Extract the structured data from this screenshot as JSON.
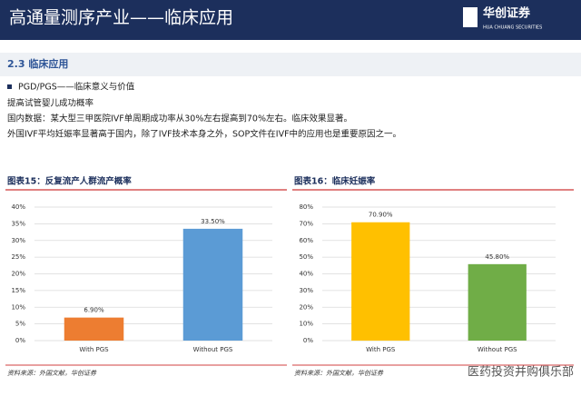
{
  "header": {
    "title": "高通量测序产业——临床应用",
    "logo": "华创证券",
    "logo_sub": "HUA CHUANG SECURITIES"
  },
  "section": "2.3 临床应用",
  "bullet": "PGD/PGS——临床意义与价值",
  "lines": [
    "提高试管婴儿成功概率",
    "国内数据：某大型三甲医院IVF单周期成功率从30%左右提高到70%左右。临床效果显著。",
    "外国IVF平均妊娠率显著高于国内，除了IVF技术本身之外，SOP文件在IVF中的应用也是重要原因之一。"
  ],
  "watermark": "医药投资并购俱乐部",
  "chart_data": [
    {
      "type": "bar",
      "title": "图表15：反复流产人群流产概率",
      "source": "资料来源：外国文献，华创证券",
      "categories": [
        "With PGS",
        "Without PGS"
      ],
      "values": [
        6.9,
        33.5
      ],
      "value_labels": [
        "6.90%",
        "33.50%"
      ],
      "colors": [
        "#ed7d31",
        "#5b9bd5"
      ],
      "ylim": [
        0,
        40
      ],
      "grid": true,
      "yticks": [
        {
          "value": 0,
          "label": "0%"
        },
        {
          "value": 5,
          "label": "5%"
        },
        {
          "value": 10,
          "label": "10%"
        },
        {
          "value": 15,
          "label": "15%"
        },
        {
          "value": 20,
          "label": "20%"
        },
        {
          "value": 25,
          "label": "25%"
        },
        {
          "value": 30,
          "label": "30%"
        },
        {
          "value": 35,
          "label": "35%"
        },
        {
          "value": 40,
          "label": "40%"
        }
      ]
    },
    {
      "type": "bar",
      "title": "图表16：临床妊娠率",
      "source": "资料来源：外国文献，华创证券",
      "categories": [
        "With PGS",
        "Without PGS"
      ],
      "values": [
        70.9,
        45.8
      ],
      "value_labels": [
        "70.90%",
        "45.80%"
      ],
      "colors": [
        "#ffc000",
        "#70ad47"
      ],
      "ylim": [
        0,
        80
      ],
      "grid": true,
      "yticks": [
        {
          "value": 0,
          "label": "0%"
        },
        {
          "value": 10,
          "label": "10%"
        },
        {
          "value": 20,
          "label": "20%"
        },
        {
          "value": 30,
          "label": "30%"
        },
        {
          "value": 40,
          "label": "40%"
        },
        {
          "value": 50,
          "label": "50%"
        },
        {
          "value": 60,
          "label": "60%"
        },
        {
          "value": 70,
          "label": "70%"
        },
        {
          "value": 80,
          "label": "80%"
        }
      ]
    }
  ]
}
